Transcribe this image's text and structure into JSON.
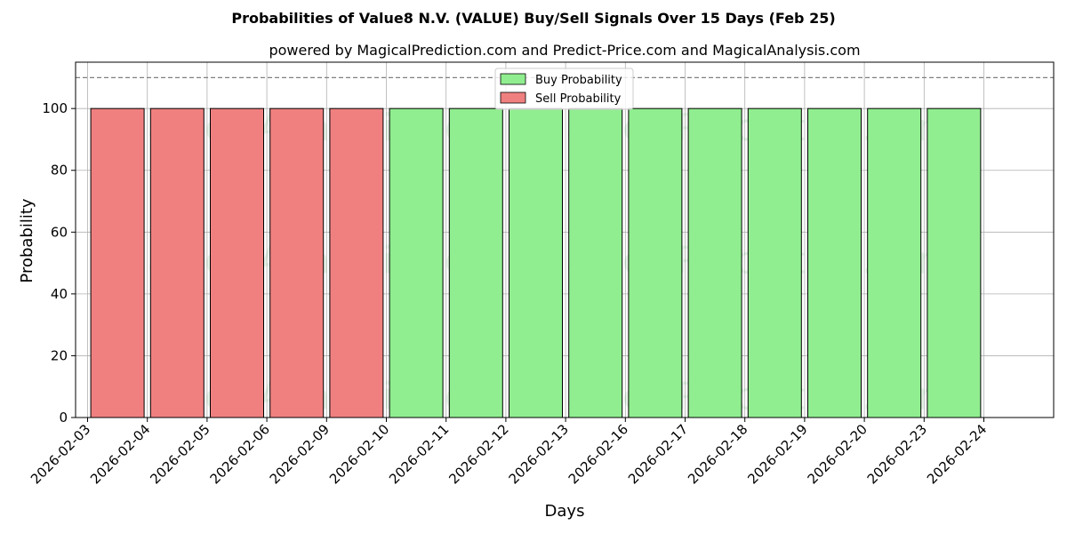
{
  "chart_data": {
    "type": "bar",
    "title": "Probabilities of Value8 N.V. (VALUE) Buy/Sell Signals Over 15 Days (Feb 25)",
    "subtitle": "powered by MagicalPrediction.com and Predict-Price.com and MagicalAnalysis.com",
    "xlabel": "Days",
    "ylabel": "Probability",
    "ylim": [
      0,
      115
    ],
    "yticks": [
      0,
      20,
      40,
      60,
      80,
      100
    ],
    "xticks": [
      "2026-02-03",
      "2026-02-04",
      "2026-02-05",
      "2026-02-06",
      "2026-02-09",
      "2026-02-10",
      "2026-02-11",
      "2026-02-12",
      "2026-02-13",
      "2026-02-16",
      "2026-02-17",
      "2026-02-18",
      "2026-02-19",
      "2026-02-20",
      "2026-02-23",
      "2026-02-24"
    ],
    "reference_line": 110,
    "grid": true,
    "legend_position": "top-center",
    "series": [
      {
        "name": "Buy Probability",
        "color": "#90ee90",
        "bars": [
          {
            "day": "2026-02-10",
            "value": 100
          },
          {
            "day": "2026-02-11",
            "value": 100
          },
          {
            "day": "2026-02-12",
            "value": 100
          },
          {
            "day": "2026-02-13",
            "value": 100
          },
          {
            "day": "2026-02-16",
            "value": 100
          },
          {
            "day": "2026-02-17",
            "value": 100
          },
          {
            "day": "2026-02-18",
            "value": 100
          },
          {
            "day": "2026-02-19",
            "value": 100
          },
          {
            "day": "2026-02-20",
            "value": 100
          },
          {
            "day": "2026-02-23",
            "value": 100
          }
        ]
      },
      {
        "name": "Sell Probability",
        "color": "#f08080",
        "bars": [
          {
            "day": "2026-02-03",
            "value": 100
          },
          {
            "day": "2026-02-04",
            "value": 100
          },
          {
            "day": "2026-02-05",
            "value": 100
          },
          {
            "day": "2026-02-06",
            "value": 100
          },
          {
            "day": "2026-02-09",
            "value": 100
          }
        ]
      }
    ],
    "watermarks": [
      "MagicalAnalysis.com",
      "MagicalPrediction.com"
    ]
  }
}
